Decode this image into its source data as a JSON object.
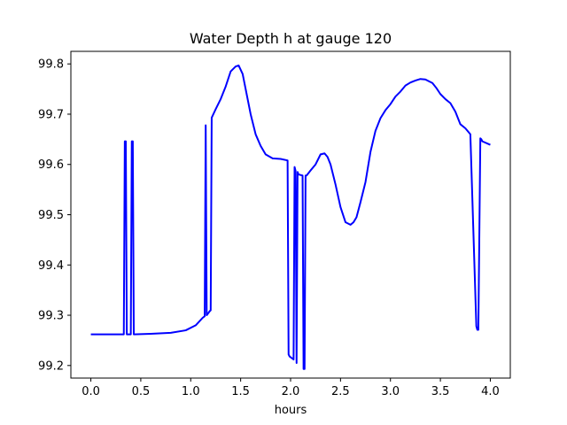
{
  "chart_data": {
    "type": "line",
    "title": "Water Depth h at gauge 120",
    "xlabel": "hours",
    "ylabel": "",
    "xlim": [
      -0.2,
      4.2
    ],
    "ylim": [
      99.175,
      99.825
    ],
    "xticks": [
      0.0,
      0.5,
      1.0,
      1.5,
      2.0,
      2.5,
      3.0,
      3.5,
      4.0
    ],
    "xtick_labels": [
      "0.0",
      "0.5",
      "1.0",
      "1.5",
      "2.0",
      "2.5",
      "3.0",
      "3.5",
      "4.0"
    ],
    "yticks": [
      99.2,
      99.3,
      99.4,
      99.5,
      99.6,
      99.7,
      99.8
    ],
    "ytick_labels": [
      "99.2",
      "99.3",
      "99.4",
      "99.5",
      "99.6",
      "99.7",
      "99.8"
    ],
    "grid": false,
    "series": [
      {
        "color": "#0000ff",
        "x": [
          0.0,
          0.33,
          0.34,
          0.35,
          0.36,
          0.4,
          0.41,
          0.42,
          0.43,
          0.6,
          0.8,
          0.95,
          1.05,
          1.12,
          1.14,
          1.15,
          1.16,
          1.19,
          1.2,
          1.21,
          1.25,
          1.3,
          1.35,
          1.4,
          1.45,
          1.48,
          1.52,
          1.56,
          1.6,
          1.65,
          1.7,
          1.75,
          1.82,
          1.9,
          1.97,
          1.98,
          1.99,
          2.03,
          2.04,
          2.05,
          2.06,
          2.07,
          2.08,
          2.12,
          2.13,
          2.14,
          2.15,
          2.16,
          2.2,
          2.25,
          2.3,
          2.34,
          2.37,
          2.4,
          2.45,
          2.5,
          2.55,
          2.6,
          2.63,
          2.66,
          2.7,
          2.75,
          2.8,
          2.85,
          2.9,
          2.95,
          3.0,
          3.05,
          3.1,
          3.15,
          3.2,
          3.25,
          3.3,
          3.35,
          3.38,
          3.42,
          3.46,
          3.5,
          3.55,
          3.6,
          3.65,
          3.7,
          3.75,
          3.8,
          3.86,
          3.87,
          3.88,
          3.9,
          3.91,
          3.92,
          4.0
        ],
        "y": [
          99.262,
          99.262,
          99.646,
          99.646,
          99.262,
          99.262,
          99.646,
          99.646,
          99.262,
          99.263,
          99.265,
          99.27,
          99.28,
          99.295,
          99.298,
          99.678,
          99.3,
          99.308,
          99.31,
          99.693,
          99.71,
          99.73,
          99.755,
          99.785,
          99.795,
          99.797,
          99.78,
          99.74,
          99.7,
          99.66,
          99.637,
          99.62,
          99.612,
          99.611,
          99.608,
          99.222,
          99.218,
          99.212,
          99.595,
          99.587,
          99.205,
          99.585,
          99.58,
          99.578,
          99.193,
          99.193,
          99.578,
          99.578,
          99.588,
          99.6,
          99.62,
          99.622,
          99.615,
          99.6,
          99.56,
          99.515,
          99.485,
          99.48,
          99.485,
          99.495,
          99.525,
          99.565,
          99.625,
          99.667,
          99.692,
          99.708,
          99.72,
          99.735,
          99.745,
          99.757,
          99.763,
          99.767,
          99.77,
          99.769,
          99.766,
          99.762,
          99.752,
          99.74,
          99.73,
          99.722,
          99.705,
          99.68,
          99.672,
          99.66,
          99.278,
          99.271,
          99.271,
          99.652,
          99.65,
          99.646,
          99.639
        ]
      }
    ]
  }
}
